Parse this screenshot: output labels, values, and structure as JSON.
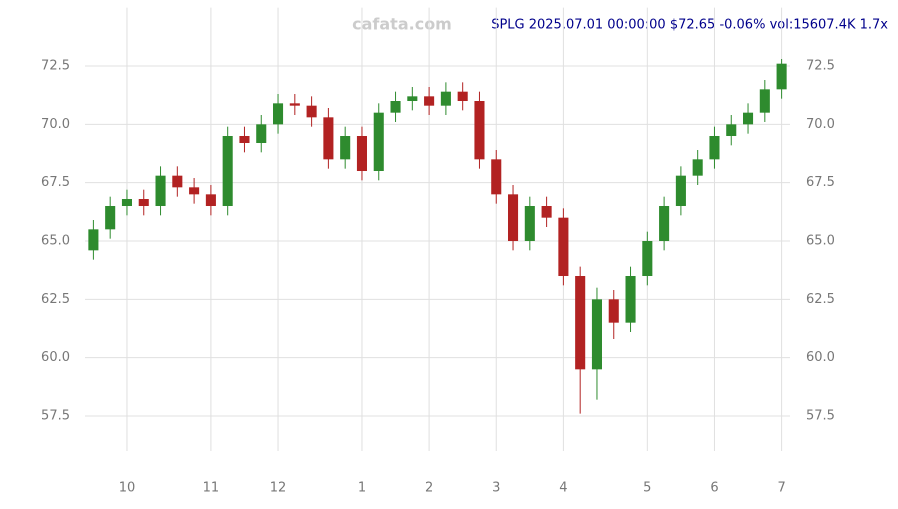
{
  "chart_data": {
    "type": "candlestick",
    "title": "SPLG 2025.07.01 00:00:00 $72.65 -0.06% vol:15607.4K 1.7x",
    "watermark": "cafata.com",
    "categories": [
      null,
      null,
      "10",
      null,
      null,
      null,
      null,
      "11",
      null,
      null,
      null,
      "12",
      null,
      null,
      null,
      null,
      "1",
      null,
      null,
      null,
      "2",
      null,
      null,
      null,
      "3",
      null,
      null,
      null,
      "4",
      null,
      null,
      null,
      null,
      "5",
      null,
      null,
      null,
      "6",
      null,
      null,
      null,
      "7"
    ],
    "open": [
      64.6,
      65.5,
      66.5,
      66.8,
      66.5,
      67.8,
      67.3,
      67.0,
      66.5,
      69.5,
      69.2,
      70.0,
      70.9,
      70.8,
      70.3,
      68.5,
      69.5,
      68.0,
      70.5,
      71.0,
      71.2,
      70.8,
      71.4,
      71.0,
      68.5,
      67.0,
      65.0,
      66.5,
      66.0,
      63.5,
      59.5,
      62.5,
      61.5,
      63.5,
      65.0,
      66.5,
      67.8,
      68.5,
      69.5,
      70.0,
      70.5,
      71.5
    ],
    "high": [
      65.9,
      66.9,
      67.2,
      67.2,
      68.2,
      68.2,
      67.7,
      67.4,
      69.9,
      69.9,
      70.4,
      71.3,
      71.3,
      71.2,
      70.7,
      69.9,
      69.9,
      70.9,
      71.4,
      71.6,
      71.6,
      71.8,
      71.8,
      71.4,
      68.9,
      67.4,
      66.9,
      66.9,
      66.4,
      63.9,
      63.0,
      62.9,
      63.9,
      65.4,
      66.9,
      68.2,
      68.9,
      69.9,
      70.4,
      70.9,
      71.9,
      72.8
    ],
    "low": [
      64.2,
      65.1,
      66.1,
      66.1,
      66.1,
      66.9,
      66.6,
      66.1,
      66.1,
      68.8,
      68.8,
      69.6,
      70.4,
      69.9,
      68.1,
      68.1,
      67.6,
      67.6,
      70.1,
      70.6,
      70.4,
      70.4,
      70.6,
      68.1,
      66.6,
      64.6,
      64.6,
      65.6,
      63.1,
      57.6,
      58.2,
      60.8,
      61.1,
      63.1,
      64.6,
      66.1,
      67.4,
      68.1,
      69.1,
      69.6,
      70.1,
      71.1
    ],
    "close": [
      65.5,
      66.5,
      66.8,
      66.5,
      67.8,
      67.3,
      67.0,
      66.5,
      69.5,
      69.2,
      70.0,
      70.9,
      70.8,
      70.3,
      68.5,
      69.5,
      68.0,
      70.5,
      71.0,
      71.2,
      70.8,
      71.4,
      71.0,
      68.5,
      67.0,
      65.0,
      66.5,
      66.0,
      63.5,
      59.5,
      62.5,
      61.5,
      63.5,
      65.0,
      66.5,
      67.8,
      68.5,
      69.5,
      70.0,
      70.5,
      71.5,
      72.6
    ],
    "up_color": "#2e8b2e",
    "down_color": "#b22222",
    "ylim": [
      56,
      75
    ],
    "yticks": [
      57.5,
      {
        "value": 60,
        "label": "60.0"
      },
      62.5,
      {
        "value": 65,
        "label": "65.0"
      },
      67.5,
      {
        "value": 70,
        "label": "70.0"
      },
      72.5
    ],
    "grid": true
  }
}
